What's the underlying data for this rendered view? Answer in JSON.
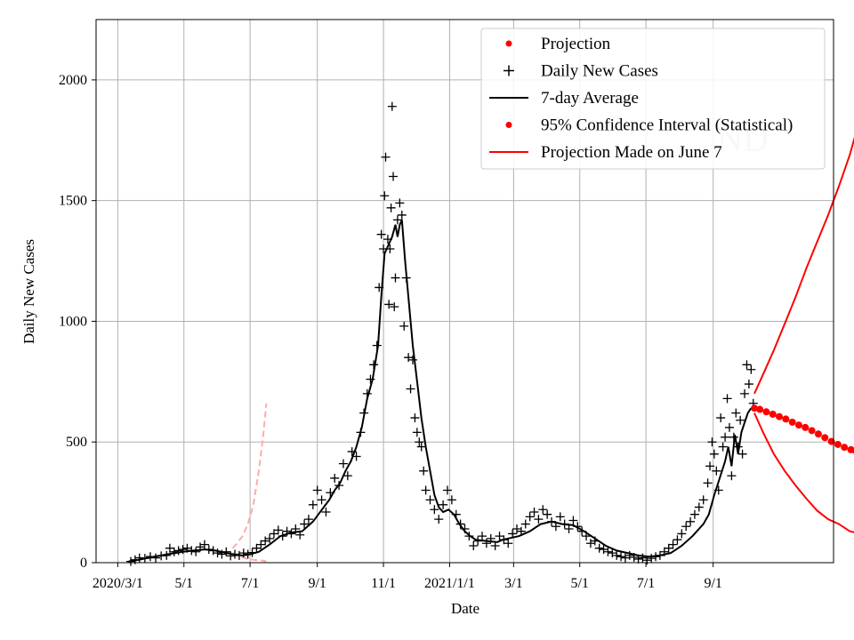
{
  "chart_data": {
    "type": "line",
    "xlabel": "Date",
    "ylabel": "Daily New Cases",
    "x_unit": "days since 2020-03-01",
    "xlim": [
      -20,
      660
    ],
    "ylim": [
      0,
      2250
    ],
    "grid": true,
    "legend_position": "top-right",
    "watermark": "ND",
    "x_ticks": [
      {
        "day": 0,
        "label": "2020/3/1"
      },
      {
        "day": 61,
        "label": "5/1"
      },
      {
        "day": 122,
        "label": "7/1"
      },
      {
        "day": 184,
        "label": "9/1"
      },
      {
        "day": 245,
        "label": "11/1"
      },
      {
        "day": 306,
        "label": "2021/1/1"
      },
      {
        "day": 365,
        "label": "3/1"
      },
      {
        "day": 426,
        "label": "5/1"
      },
      {
        "day": 487,
        "label": "7/1"
      },
      {
        "day": 549,
        "label": "9/1"
      }
    ],
    "y_ticks": [
      0,
      500,
      1000,
      1500,
      2000
    ],
    "legend": [
      {
        "label": "Projection",
        "marker": "dot",
        "color": "#ff0000"
      },
      {
        "label": "Daily New Cases",
        "marker": "plus",
        "color": "#000000"
      },
      {
        "label": "7-day Average",
        "marker": "line",
        "color": "#000000"
      },
      {
        "label": "95% Confidence Interval (Statistical)",
        "marker": "dot",
        "color": "#ff0000"
      },
      {
        "label": "Projection Made on June 7",
        "marker": "line",
        "color": "#ff0000"
      }
    ],
    "seven_day_average": {
      "color": "#000000",
      "points": [
        [
          10,
          5
        ],
        [
          20,
          12
        ],
        [
          30,
          22
        ],
        [
          40,
          30
        ],
        [
          50,
          38
        ],
        [
          60,
          45
        ],
        [
          70,
          50
        ],
        [
          80,
          55
        ],
        [
          90,
          50
        ],
        [
          100,
          40
        ],
        [
          110,
          32
        ],
        [
          115,
          30
        ],
        [
          122,
          35
        ],
        [
          130,
          45
        ],
        [
          140,
          75
        ],
        [
          150,
          110
        ],
        [
          160,
          125
        ],
        [
          170,
          130
        ],
        [
          175,
          150
        ],
        [
          180,
          170
        ],
        [
          185,
          200
        ],
        [
          190,
          230
        ],
        [
          195,
          260
        ],
        [
          200,
          300
        ],
        [
          205,
          330
        ],
        [
          210,
          380
        ],
        [
          215,
          420
        ],
        [
          220,
          480
        ],
        [
          225,
          560
        ],
        [
          230,
          680
        ],
        [
          235,
          760
        ],
        [
          240,
          900
        ],
        [
          243,
          1100
        ],
        [
          246,
          1280
        ],
        [
          250,
          1320
        ],
        [
          253,
          1350
        ],
        [
          256,
          1400
        ],
        [
          258,
          1350
        ],
        [
          260,
          1400
        ],
        [
          262,
          1420
        ],
        [
          265,
          1250
        ],
        [
          268,
          1100
        ],
        [
          272,
          900
        ],
        [
          276,
          750
        ],
        [
          280,
          600
        ],
        [
          284,
          480
        ],
        [
          288,
          380
        ],
        [
          292,
          280
        ],
        [
          296,
          230
        ],
        [
          300,
          210
        ],
        [
          305,
          220
        ],
        [
          310,
          200
        ],
        [
          315,
          160
        ],
        [
          320,
          130
        ],
        [
          325,
          110
        ],
        [
          330,
          95
        ],
        [
          340,
          90
        ],
        [
          350,
          85
        ],
        [
          355,
          95
        ],
        [
          360,
          100
        ],
        [
          370,
          110
        ],
        [
          380,
          130
        ],
        [
          390,
          160
        ],
        [
          400,
          170
        ],
        [
          410,
          160
        ],
        [
          420,
          155
        ],
        [
          430,
          130
        ],
        [
          440,
          100
        ],
        [
          450,
          70
        ],
        [
          460,
          50
        ],
        [
          470,
          40
        ],
        [
          480,
          30
        ],
        [
          490,
          25
        ],
        [
          500,
          30
        ],
        [
          510,
          40
        ],
        [
          520,
          70
        ],
        [
          530,
          110
        ],
        [
          540,
          160
        ],
        [
          545,
          200
        ],
        [
          550,
          280
        ],
        [
          555,
          350
        ],
        [
          560,
          420
        ],
        [
          563,
          480
        ],
        [
          566,
          400
        ],
        [
          569,
          530
        ],
        [
          572,
          450
        ],
        [
          575,
          540
        ],
        [
          578,
          580
        ],
        [
          581,
          620
        ],
        [
          584,
          640
        ]
      ]
    },
    "daily_new_cases": {
      "color": "#000000",
      "points": [
        [
          12,
          5
        ],
        [
          16,
          12
        ],
        [
          20,
          20
        ],
        [
          25,
          18
        ],
        [
          30,
          25
        ],
        [
          35,
          20
        ],
        [
          40,
          28
        ],
        [
          45,
          30
        ],
        [
          48,
          60
        ],
        [
          52,
          45
        ],
        [
          56,
          50
        ],
        [
          60,
          55
        ],
        [
          64,
          60
        ],
        [
          68,
          50
        ],
        [
          72,
          45
        ],
        [
          76,
          65
        ],
        [
          80,
          75
        ],
        [
          84,
          55
        ],
        [
          88,
          50
        ],
        [
          92,
          40
        ],
        [
          96,
          35
        ],
        [
          100,
          45
        ],
        [
          104,
          28
        ],
        [
          108,
          35
        ],
        [
          112,
          30
        ],
        [
          116,
          40
        ],
        [
          120,
          35
        ],
        [
          124,
          42
        ],
        [
          128,
          60
        ],
        [
          132,
          75
        ],
        [
          136,
          90
        ],
        [
          140,
          100
        ],
        [
          144,
          120
        ],
        [
          148,
          135
        ],
        [
          152,
          110
        ],
        [
          156,
          130
        ],
        [
          160,
          120
        ],
        [
          164,
          140
        ],
        [
          168,
          115
        ],
        [
          172,
          160
        ],
        [
          176,
          180
        ],
        [
          180,
          240
        ],
        [
          184,
          300
        ],
        [
          188,
          260
        ],
        [
          192,
          210
        ],
        [
          196,
          290
        ],
        [
          200,
          350
        ],
        [
          204,
          320
        ],
        [
          208,
          410
        ],
        [
          212,
          360
        ],
        [
          216,
          460
        ],
        [
          220,
          440
        ],
        [
          224,
          540
        ],
        [
          227,
          620
        ],
        [
          230,
          700
        ],
        [
          233,
          760
        ],
        [
          236,
          820
        ],
        [
          239,
          900
        ],
        [
          241,
          1140
        ],
        [
          243,
          1360
        ],
        [
          245,
          1300
        ],
        [
          246,
          1520
        ],
        [
          247,
          1680
        ],
        [
          249,
          1340
        ],
        [
          250,
          1070
        ],
        [
          251,
          1300
        ],
        [
          252,
          1470
        ],
        [
          253,
          1890
        ],
        [
          254,
          1600
        ],
        [
          255,
          1060
        ],
        [
          256,
          1180
        ],
        [
          258,
          1420
        ],
        [
          260,
          1490
        ],
        [
          262,
          1440
        ],
        [
          264,
          980
        ],
        [
          266,
          1180
        ],
        [
          268,
          850
        ],
        [
          270,
          720
        ],
        [
          272,
          840
        ],
        [
          274,
          600
        ],
        [
          276,
          540
        ],
        [
          278,
          500
        ],
        [
          280,
          480
        ],
        [
          282,
          380
        ],
        [
          284,
          300
        ],
        [
          288,
          260
        ],
        [
          292,
          220
        ],
        [
          296,
          180
        ],
        [
          300,
          240
        ],
        [
          304,
          300
        ],
        [
          308,
          260
        ],
        [
          312,
          200
        ],
        [
          316,
          160
        ],
        [
          320,
          140
        ],
        [
          324,
          110
        ],
        [
          328,
          70
        ],
        [
          332,
          90
        ],
        [
          336,
          110
        ],
        [
          340,
          80
        ],
        [
          344,
          100
        ],
        [
          348,
          70
        ],
        [
          352,
          110
        ],
        [
          356,
          95
        ],
        [
          360,
          80
        ],
        [
          364,
          120
        ],
        [
          368,
          140
        ],
        [
          372,
          130
        ],
        [
          376,
          160
        ],
        [
          380,
          190
        ],
        [
          384,
          210
        ],
        [
          388,
          180
        ],
        [
          392,
          220
        ],
        [
          396,
          200
        ],
        [
          400,
          170
        ],
        [
          404,
          150
        ],
        [
          408,
          190
        ],
        [
          412,
          160
        ],
        [
          416,
          140
        ],
        [
          420,
          175
        ],
        [
          424,
          150
        ],
        [
          428,
          130
        ],
        [
          432,
          110
        ],
        [
          436,
          80
        ],
        [
          440,
          90
        ],
        [
          444,
          60
        ],
        [
          448,
          55
        ],
        [
          452,
          45
        ],
        [
          456,
          40
        ],
        [
          460,
          30
        ],
        [
          464,
          25
        ],
        [
          468,
          20
        ],
        [
          472,
          30
        ],
        [
          476,
          22
        ],
        [
          480,
          15
        ],
        [
          484,
          20
        ],
        [
          488,
          10
        ],
        [
          492,
          18
        ],
        [
          496,
          25
        ],
        [
          500,
          30
        ],
        [
          504,
          45
        ],
        [
          508,
          60
        ],
        [
          512,
          75
        ],
        [
          516,
          95
        ],
        [
          520,
          120
        ],
        [
          524,
          150
        ],
        [
          528,
          170
        ],
        [
          532,
          200
        ],
        [
          536,
          230
        ],
        [
          540,
          260
        ],
        [
          544,
          330
        ],
        [
          546,
          400
        ],
        [
          548,
          500
        ],
        [
          550,
          450
        ],
        [
          552,
          380
        ],
        [
          554,
          300
        ],
        [
          556,
          600
        ],
        [
          558,
          480
        ],
        [
          560,
          520
        ],
        [
          562,
          680
        ],
        [
          564,
          560
        ],
        [
          566,
          360
        ],
        [
          568,
          520
        ],
        [
          570,
          620
        ],
        [
          572,
          480
        ],
        [
          574,
          590
        ],
        [
          576,
          450
        ],
        [
          578,
          700
        ],
        [
          580,
          820
        ],
        [
          582,
          740
        ],
        [
          584,
          800
        ],
        [
          586,
          660
        ]
      ]
    },
    "projection": {
      "color": "#ff0000",
      "points": [
        [
          587,
          640
        ],
        [
          592,
          635
        ],
        [
          598,
          625
        ],
        [
          604,
          615
        ],
        [
          610,
          605
        ],
        [
          616,
          595
        ],
        [
          622,
          582
        ],
        [
          628,
          570
        ],
        [
          634,
          560
        ],
        [
          640,
          547
        ],
        [
          646,
          533
        ],
        [
          652,
          518
        ],
        [
          658,
          502
        ],
        [
          664,
          490
        ],
        [
          670,
          478
        ],
        [
          676,
          468
        ],
        [
          680,
          465
        ]
      ]
    },
    "confidence_interval": {
      "color": "#ff0000",
      "upper": [
        [
          587,
          700
        ],
        [
          595,
          780
        ],
        [
          605,
          880
        ],
        [
          615,
          990
        ],
        [
          625,
          1100
        ],
        [
          635,
          1220
        ],
        [
          645,
          1330
        ],
        [
          655,
          1440
        ],
        [
          665,
          1560
        ],
        [
          675,
          1690
        ],
        [
          680,
          1770
        ]
      ],
      "lower": [
        [
          587,
          620
        ],
        [
          595,
          540
        ],
        [
          605,
          450
        ],
        [
          615,
          380
        ],
        [
          625,
          320
        ],
        [
          635,
          265
        ],
        [
          645,
          215
        ],
        [
          655,
          180
        ],
        [
          665,
          160
        ],
        [
          675,
          130
        ],
        [
          680,
          125
        ]
      ]
    },
    "june7_projection": {
      "color": "#ffaaaa",
      "style": "dashed",
      "upper": [
        [
          106,
          60
        ],
        [
          110,
          80
        ],
        [
          115,
          110
        ],
        [
          120,
          160
        ],
        [
          125,
          240
        ],
        [
          130,
          380
        ],
        [
          134,
          520
        ],
        [
          137,
          660
        ]
      ],
      "lower": [
        [
          106,
          40
        ],
        [
          110,
          30
        ],
        [
          115,
          22
        ],
        [
          120,
          15
        ],
        [
          125,
          12
        ],
        [
          130,
          10
        ],
        [
          134,
          8
        ],
        [
          137,
          5
        ]
      ]
    }
  }
}
